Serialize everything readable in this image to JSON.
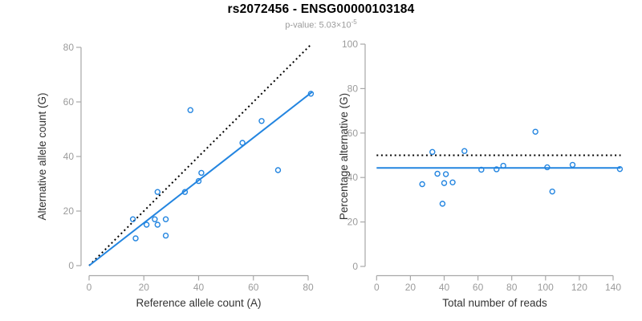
{
  "header": {
    "title": "rs2072456 - ENSG00000103184",
    "subtitle_prefix": "p-value: ",
    "subtitle_base": "5.03×10",
    "subtitle_exponent": "-5"
  },
  "colors": {
    "blue": "#2385e0",
    "black": "#000000",
    "axis_gray": "#a8a8a8",
    "tick_label_gray": "#9b9b9b"
  },
  "chart_data": [
    {
      "type": "scatter",
      "xlabel": "Reference allele count (A)",
      "ylabel": "Alternative allele count (G)",
      "xlim": [
        0,
        80
      ],
      "ylim": [
        0,
        80
      ],
      "xticks": [
        0,
        20,
        40,
        60,
        80
      ],
      "yticks": [
        0,
        20,
        40,
        60,
        80
      ],
      "grid": false,
      "legend": "none",
      "points": [
        [
          16,
          17
        ],
        [
          17,
          10
        ],
        [
          21,
          15
        ],
        [
          24,
          17
        ],
        [
          25,
          15
        ],
        [
          25,
          27
        ],
        [
          28,
          11
        ],
        [
          28,
          17
        ],
        [
          35,
          27
        ],
        [
          37,
          57
        ],
        [
          40,
          31
        ],
        [
          41,
          34
        ],
        [
          56,
          45
        ],
        [
          63,
          53
        ],
        [
          69,
          35
        ],
        [
          81,
          63
        ]
      ],
      "lines": [
        {
          "name": "identity-line",
          "style": "dotted",
          "color": "black",
          "x": [
            0,
            81
          ],
          "y": [
            0,
            81
          ]
        },
        {
          "name": "fit-line",
          "style": "solid",
          "color": "blue",
          "x": [
            0,
            81.4
          ],
          "y": [
            0,
            63.6
          ]
        }
      ]
    },
    {
      "type": "scatter",
      "xlabel": "Total number of reads",
      "ylabel": "Percentage alternative (G)",
      "xlim": [
        0,
        145
      ],
      "ylim": [
        0,
        100
      ],
      "xticks": [
        0,
        20,
        40,
        60,
        80,
        100,
        120,
        140
      ],
      "yticks": [
        0,
        20,
        40,
        60,
        80,
        100
      ],
      "grid": false,
      "legend": "none",
      "points": [
        [
          27,
          37.0
        ],
        [
          33,
          51.5
        ],
        [
          36,
          41.7
        ],
        [
          39,
          28.2
        ],
        [
          40,
          37.5
        ],
        [
          41,
          41.5
        ],
        [
          45,
          37.8
        ],
        [
          52,
          51.9
        ],
        [
          62,
          43.5
        ],
        [
          71,
          43.7
        ],
        [
          75,
          45.3
        ],
        [
          94,
          60.6
        ],
        [
          101,
          44.6
        ],
        [
          104,
          33.7
        ],
        [
          116,
          45.7
        ],
        [
          144,
          43.8
        ]
      ],
      "lines": [
        {
          "name": "null-line",
          "style": "dotted",
          "color": "black",
          "x": [
            0,
            144.5
          ],
          "y": [
            50,
            50
          ]
        },
        {
          "name": "mean-line",
          "style": "solid",
          "color": "blue",
          "x": [
            0,
            144.5
          ],
          "y": [
            44.3,
            44.3
          ]
        }
      ]
    }
  ]
}
